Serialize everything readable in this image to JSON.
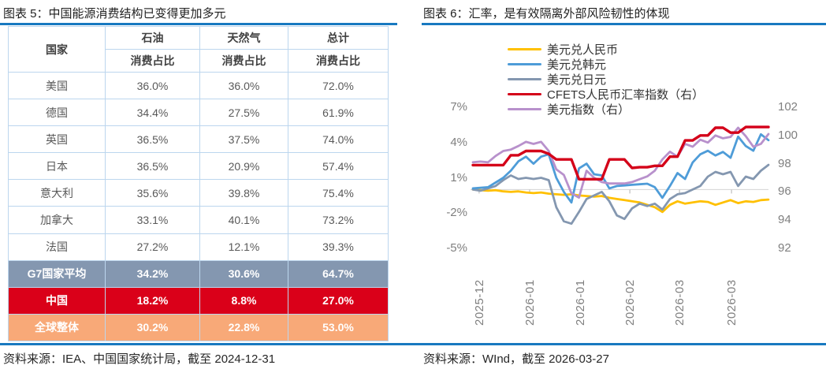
{
  "accent_color": "#1879C0",
  "figure5": {
    "title": "图表 5：中国能源消费结构已变得更加多元",
    "source": "资料来源：IEA、中国国家统计局，截至 2024-12-31"
  },
  "figure6": {
    "title": "图表 6：汇率，是有效隔离外部风险韧性的体现",
    "source": "资料来源：WInd，截至 2026-03-27"
  },
  "chart_data": [
    {
      "type": "table",
      "title": "中国能源消费结构已变得更加多元",
      "corner_header": "国家",
      "col_groups": [
        "石油",
        "天然气",
        "总计"
      ],
      "sub_header": "消费占比",
      "rows": [
        {
          "cells": [
            "美国",
            "36.0%",
            "36.0%",
            "72.0%"
          ],
          "variant": "normal"
        },
        {
          "cells": [
            "德国",
            "34.4%",
            "27.5%",
            "61.9%"
          ],
          "variant": "normal"
        },
        {
          "cells": [
            "英国",
            "36.5%",
            "37.5%",
            "74.0%"
          ],
          "variant": "normal"
        },
        {
          "cells": [
            "日本",
            "36.5%",
            "20.9%",
            "57.4%"
          ],
          "variant": "normal"
        },
        {
          "cells": [
            "意大利",
            "35.6%",
            "39.8%",
            "75.4%"
          ],
          "variant": "normal"
        },
        {
          "cells": [
            "加拿大",
            "33.1%",
            "40.1%",
            "73.2%"
          ],
          "variant": "normal"
        },
        {
          "cells": [
            "法国",
            "27.2%",
            "12.1%",
            "39.3%"
          ],
          "variant": "normal"
        },
        {
          "cells": [
            "G7国家平均",
            "34.2%",
            "30.6%",
            "64.7%"
          ],
          "variant": "g7"
        },
        {
          "cells": [
            "中国",
            "18.2%",
            "8.8%",
            "27.0%"
          ],
          "variant": "china"
        },
        {
          "cells": [
            "全球整体",
            "30.2%",
            "22.8%",
            "53.0%"
          ],
          "variant": "global"
        }
      ],
      "variant_colors": {
        "g7": "#8497B0",
        "china": "#DA0019",
        "global": "#F8A978"
      }
    },
    {
      "type": "line",
      "title": "汇率，是有效隔离外部风险韧性的体现",
      "left_axis": {
        "ticks": [
          7,
          4,
          1,
          -2,
          -5
        ],
        "max": 7,
        "min": -5,
        "unit": "%"
      },
      "right_axis": {
        "ticks": [
          102,
          100,
          98,
          96,
          94,
          92
        ],
        "max": 102,
        "min": 92
      },
      "gridline_value": 0,
      "grid_color": "#D9D9D9",
      "legend_position": "top-center-stacked",
      "x_ticks": [
        {
          "label": "2025-12",
          "f": 0.021
        },
        {
          "label": "2026-01",
          "f": 0.192
        },
        {
          "label": "2026-01",
          "f": 0.363
        },
        {
          "label": "2026-02",
          "f": 0.531
        },
        {
          "label": "2026-03",
          "f": 0.699
        },
        {
          "label": "2026-03",
          "f": 0.875
        }
      ],
      "series": [
        {
          "key": "usd_cny",
          "name": "美元兑人民币",
          "axis": "left",
          "color": "#FFC000",
          "values": [
            0,
            -0.05,
            -0.1,
            -0.05,
            -0.15,
            -0.2,
            -0.15,
            -0.25,
            -0.3,
            -0.25,
            -0.35,
            -0.4,
            -0.45,
            -0.4,
            -0.5,
            -0.55,
            -0.6,
            -0.55,
            -0.7,
            -0.8,
            -0.9,
            -1.0,
            -1.1,
            -1.3,
            -1.5,
            -1.9,
            -1.3,
            -1.0,
            -1.2,
            -1.1,
            -1.0,
            -1.05,
            -1.3,
            -1.1,
            -0.9,
            -1.15,
            -1.0,
            -1.05,
            -0.9,
            -0.85
          ]
        },
        {
          "key": "usd_krw",
          "name": "美元兑韩元",
          "axis": "left",
          "color": "#4E9CD8",
          "values": [
            0.1,
            0.15,
            0.2,
            0.6,
            1.0,
            1.6,
            2.4,
            2.8,
            2.2,
            2.8,
            3.0,
            1.0,
            -0.2,
            -1.1,
            1.8,
            2.2,
            1.3,
            1.2,
            0.1,
            0.3,
            0.35,
            0.4,
            0.45,
            0.5,
            0.2,
            -0.7,
            0.3,
            1.4,
            0.9,
            2.3,
            3.0,
            3.3,
            2.9,
            3.2,
            2.7,
            4.5,
            3.7,
            3.3,
            4.7,
            4.2
          ]
        },
        {
          "key": "usd_jpy",
          "name": "美元兑日元",
          "axis": "left",
          "color": "#8497B0",
          "values": [
            0,
            -0.1,
            0.1,
            0.3,
            0.8,
            1.2,
            0.9,
            1.0,
            0.9,
            1.0,
            0.8,
            -1.5,
            -2.7,
            -2.9,
            -1.9,
            -0.8,
            -0.5,
            -0.2,
            -1.0,
            -2.2,
            -2.5,
            -1.6,
            -1.2,
            -1.4,
            -1.2,
            -1.7,
            -0.8,
            -0.4,
            -0.3,
            0.0,
            0.3,
            1.1,
            1.5,
            1.3,
            1.5,
            0.3,
            1.1,
            0.9,
            1.6,
            2.1
          ]
        },
        {
          "key": "cfets_index",
          "name": "CFETS人民币汇率指数（右）",
          "axis": "right",
          "color": "#D40019",
          "values": [
            97.9,
            97.9,
            97.9,
            97.9,
            97.9,
            98.6,
            98.6,
            98.9,
            98.9,
            98.9,
            98.7,
            98.3,
            98.3,
            98.3,
            96.9,
            96.9,
            96.9,
            96.9,
            98.3,
            98.3,
            98.3,
            97.7,
            97.75,
            97.75,
            97.85,
            97.85,
            98.5,
            98.5,
            99.65,
            99.65,
            100.0,
            100.0,
            100.55,
            100.55,
            100.2,
            100.2,
            100.6,
            100.6,
            100.6,
            100.6
          ]
        },
        {
          "key": "usd_index",
          "name": "美元指数（右）",
          "axis": "right",
          "color": "#B891CC",
          "values": [
            98.1,
            98.15,
            98.1,
            98.55,
            98.9,
            99.0,
            99.25,
            99.55,
            99.4,
            99.55,
            98.9,
            97.6,
            97.2,
            95.9,
            95.6,
            97.5,
            97.0,
            96.7,
            96.6,
            96.6,
            96.6,
            96.7,
            96.9,
            97.1,
            97.5,
            98.3,
            98.85,
            98.5,
            99.4,
            99.2,
            99.7,
            99.5,
            100.0,
            99.8,
            99.9,
            100.55,
            99.95,
            99.2,
            99.4,
            100.1
          ]
        }
      ]
    }
  ]
}
